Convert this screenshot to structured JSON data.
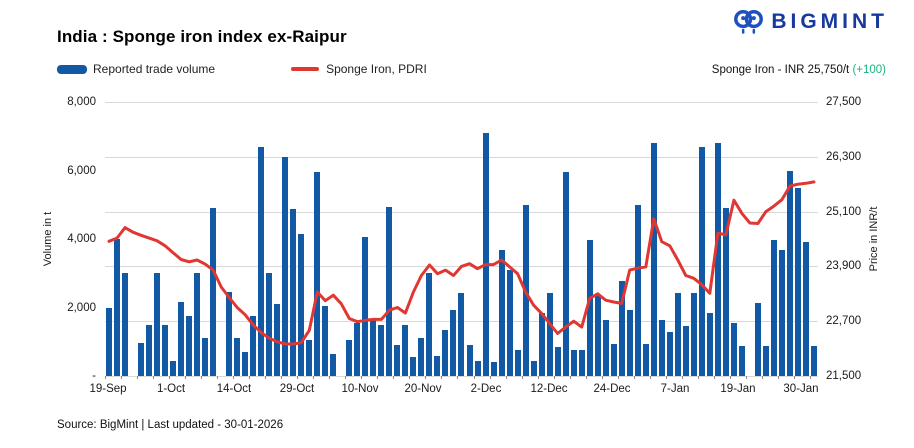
{
  "logo": {
    "text": "BIGMINT",
    "icon_color": "#1E50C2",
    "text_color": "#16399E"
  },
  "header": {
    "title": "India : Sponge iron index ex-Raipur"
  },
  "legend": {
    "bar_label": "Reported trade volume",
    "line_label": "Sponge Iron, PDRI"
  },
  "price_note": {
    "text": "Sponge Iron - INR 25,750/t ",
    "change": "(+100)",
    "change_color": "#18B380"
  },
  "footer": {
    "source": "Source: BigMint | Last updated - 30-01-2026"
  },
  "chart_data": {
    "type": "bar",
    "title": "India : Sponge iron index ex-Raipur",
    "x_tick_labels": [
      "19-Sep",
      "1-Oct",
      "14-Oct",
      "29-Oct",
      "10-Nov",
      "20-Nov",
      "2-Dec",
      "12-Dec",
      "24-Dec",
      "7-Jan",
      "19-Jan",
      "30-Jan"
    ],
    "left_axis": {
      "label": "Volume in t",
      "min": 0,
      "max": 8000,
      "ticks": [
        "8,000",
        "6,000",
        "4,000",
        "2,000",
        "-"
      ]
    },
    "right_axis": {
      "label": "Price in INR/t",
      "min": 21500,
      "max": 27500,
      "ticks": [
        "27,500",
        "26,300",
        "25,100",
        "23,900",
        "22,700",
        "21,500"
      ]
    },
    "grid": "horizontal",
    "legend_position": "top-left",
    "series": [
      {
        "name": "Reported trade volume",
        "type": "bar",
        "axis": "left",
        "color": "#1159A5",
        "values": [
          2000,
          4000,
          3000,
          0,
          950,
          1500,
          3000,
          1500,
          450,
          2150,
          1750,
          3000,
          1100,
          4900,
          0,
          2450,
          1100,
          700,
          1750,
          6700,
          3000,
          2100,
          6400,
          4870,
          4150,
          1050,
          5950,
          2050,
          630,
          0,
          1050,
          1550,
          4070,
          1630,
          1480,
          4930,
          900,
          1480,
          550,
          1100,
          3000,
          580,
          1330,
          1920,
          2430,
          900,
          430,
          7100,
          400,
          3680,
          3090,
          770,
          5000,
          430,
          1840,
          2430,
          850,
          5970,
          750,
          750,
          3970,
          2360,
          1650,
          940,
          2770,
          1940,
          5000,
          940,
          6800,
          1650,
          1290,
          2430,
          1450,
          2430,
          6680,
          1850,
          6800,
          4900,
          1560,
          890,
          0,
          2130,
          890,
          3970,
          3680,
          6000,
          5490,
          3900,
          890
        ]
      },
      {
        "name": "Sponge Iron, PDRI",
        "type": "line",
        "axis": "right",
        "color": "#E03732",
        "values": [
          24450,
          24520,
          24750,
          24650,
          24580,
          24520,
          24460,
          24350,
          24200,
          24050,
          24000,
          24040,
          23950,
          23820,
          23450,
          23220,
          23000,
          22840,
          22620,
          22450,
          22330,
          22250,
          22200,
          22200,
          22230,
          22500,
          23340,
          23150,
          23270,
          23080,
          22760,
          22690,
          22720,
          22740,
          22740,
          22940,
          23000,
          22880,
          23340,
          23700,
          23930,
          23740,
          23820,
          23700,
          23900,
          23960,
          23850,
          23940,
          23940,
          24040,
          23890,
          23740,
          23340,
          23050,
          22870,
          22650,
          22430,
          22570,
          22700,
          22570,
          23200,
          23300,
          23160,
          23120,
          23090,
          23820,
          23860,
          23890,
          24940,
          24440,
          24350,
          24040,
          23700,
          23640,
          23500,
          23310,
          24630,
          24590,
          25350,
          25060,
          24850,
          24840,
          25100,
          25220,
          25360,
          25660,
          25700,
          25720,
          25750
        ]
      }
    ],
    "colors": {
      "bar": "#1159A5",
      "line": "#E03732",
      "grid": "#D9D9D9"
    },
    "latest_price_label": "Sponge Iron - INR 25,750/t (+100)"
  }
}
